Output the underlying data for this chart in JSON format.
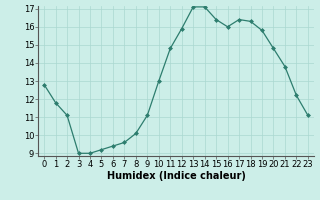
{
  "x": [
    0,
    1,
    2,
    3,
    4,
    5,
    6,
    7,
    8,
    9,
    10,
    11,
    12,
    13,
    14,
    15,
    16,
    17,
    18,
    19,
    20,
    21,
    22,
    23
  ],
  "y": [
    12.8,
    11.8,
    11.1,
    9.0,
    9.0,
    9.2,
    9.4,
    9.6,
    10.1,
    11.1,
    13.0,
    14.8,
    15.9,
    17.1,
    17.1,
    16.4,
    16.0,
    16.4,
    16.3,
    15.8,
    14.8,
    13.8,
    12.2,
    11.1
  ],
  "xlabel": "Humidex (Indice chaleur)",
  "line_color": "#2d7d6e",
  "marker_color": "#2d7d6e",
  "bg_color": "#cceee8",
  "grid_color": "#aad8d0",
  "ylim_min": 9,
  "ylim_max": 17,
  "xlim_min": -0.5,
  "xlim_max": 23.5,
  "yticks": [
    9,
    10,
    11,
    12,
    13,
    14,
    15,
    16,
    17
  ],
  "xticks": [
    0,
    1,
    2,
    3,
    4,
    5,
    6,
    7,
    8,
    9,
    10,
    11,
    12,
    13,
    14,
    15,
    16,
    17,
    18,
    19,
    20,
    21,
    22,
    23
  ],
  "tick_fontsize": 6,
  "xlabel_fontsize": 7
}
